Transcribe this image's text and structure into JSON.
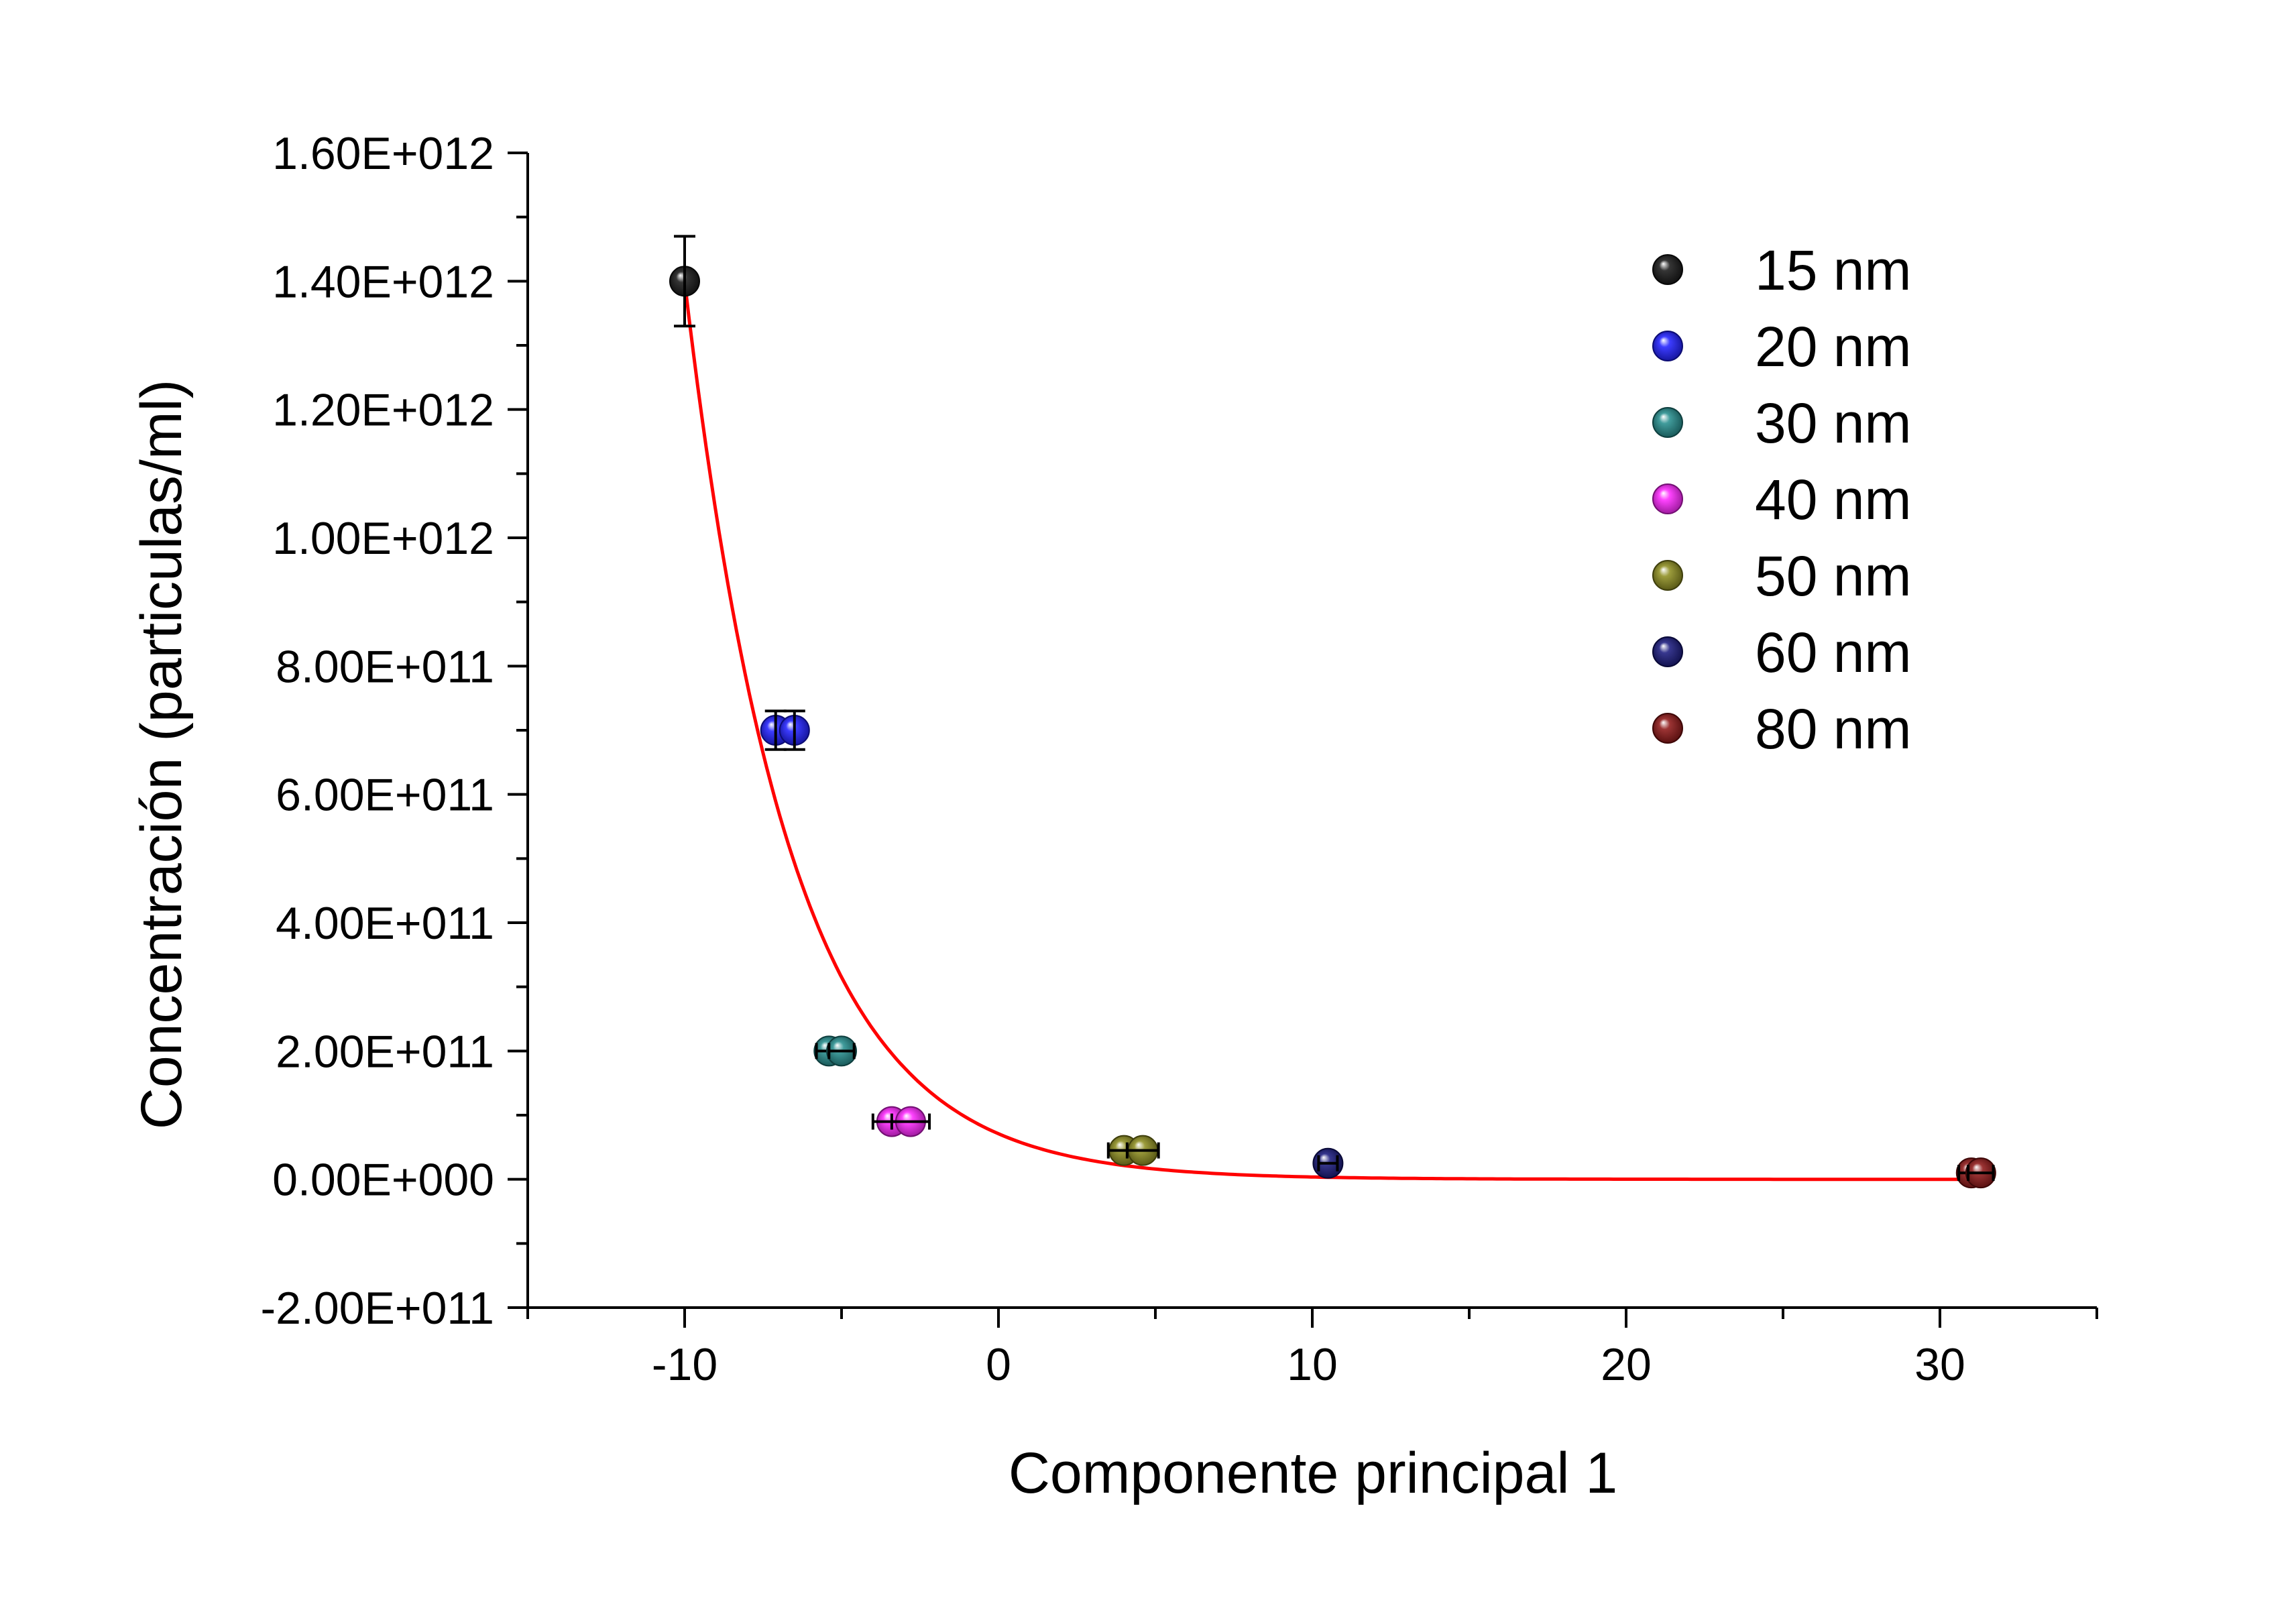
{
  "chart_data": {
    "type": "scatter",
    "xlabel": "Componente principal 1",
    "ylabel": "Concentración (particulas/ml)",
    "xlim": [
      -15,
      35
    ],
    "ylim": [
      -200000000000,
      1600000000000
    ],
    "x_ticks": [
      -10,
      0,
      10,
      20,
      30
    ],
    "x_tick_labels": [
      "-10",
      "0",
      "10",
      "20",
      "30"
    ],
    "y_ticks": [
      -200000000000,
      0,
      200000000000,
      400000000000,
      600000000000,
      800000000000,
      1000000000000,
      1200000000000,
      1400000000000,
      1600000000000
    ],
    "y_tick_labels": [
      "-2.00E+011",
      "0.00E+000",
      "2.00E+011",
      "4.00E+011",
      "6.00E+011",
      "8.00E+011",
      "1.00E+012",
      "1.20E+012",
      "1.40E+012",
      "1.60E+012"
    ],
    "grid": false,
    "legend_position": "top-right",
    "series": [
      {
        "name": "15 nm",
        "color": "#111111",
        "points": [
          {
            "x": -10.0,
            "y": 1400000000000,
            "yerr": 70000000000
          }
        ]
      },
      {
        "name": "20 nm",
        "color": "#1a1aff",
        "points": [
          {
            "x": -7.1,
            "y": 700000000000,
            "yerr": 30000000000
          },
          {
            "x": -6.5,
            "y": 700000000000,
            "yerr": 30000000000
          }
        ]
      },
      {
        "name": "30 nm",
        "color": "#1f8a8a",
        "points": [
          {
            "x": -5.4,
            "y": 200000000000,
            "xerr": 0.4
          },
          {
            "x": -5.0,
            "y": 200000000000,
            "xerr": 0.4
          }
        ]
      },
      {
        "name": "40 nm",
        "color": "#ff22ff",
        "points": [
          {
            "x": -3.4,
            "y": 90000000000,
            "xerr": 0.6
          },
          {
            "x": -2.8,
            "y": 90000000000,
            "xerr": 0.6
          }
        ]
      },
      {
        "name": "50 nm",
        "color": "#8a8a1a",
        "points": [
          {
            "x": 4.0,
            "y": 45000000000,
            "xerr": 0.5
          },
          {
            "x": 4.6,
            "y": 45000000000,
            "xerr": 0.5
          }
        ]
      },
      {
        "name": "60 nm",
        "color": "#14147a",
        "points": [
          {
            "x": 10.5,
            "y": 25000000000,
            "xerr": 0.3
          }
        ]
      },
      {
        "name": "80 nm",
        "color": "#8a1010",
        "points": [
          {
            "x": 31.0,
            "y": 10000000000,
            "xerr": 0.4
          },
          {
            "x": 31.3,
            "y": 10000000000,
            "xerr": 0.4
          }
        ]
      }
    ],
    "fit": {
      "type": "exponential_decay",
      "color": "#ff0000",
      "x_range": [
        -10,
        31.3
      ],
      "points": [
        {
          "x": -10,
          "y": 1400000000000
        },
        {
          "x": -9,
          "y": 1039000000000
        },
        {
          "x": -8,
          "y": 771000000000
        },
        {
          "x": -7,
          "y": 572000000000
        },
        {
          "x": -6,
          "y": 425000000000
        },
        {
          "x": -5,
          "y": 315000000000
        },
        {
          "x": -4,
          "y": 234000000000
        },
        {
          "x": -3,
          "y": 174000000000
        },
        {
          "x": -2,
          "y": 129000000000
        },
        {
          "x": -1,
          "y": 95700000000
        },
        {
          "x": 0,
          "y": 71000000000
        },
        {
          "x": 2,
          "y": 39100000000
        },
        {
          "x": 4,
          "y": 21500000000
        },
        {
          "x": 6,
          "y": 11900000000
        },
        {
          "x": 8,
          "y": 6500000000
        },
        {
          "x": 10,
          "y": 3600000000
        },
        {
          "x": 13,
          "y": 1500000000
        },
        {
          "x": 16,
          "y": 600000000
        },
        {
          "x": 20,
          "y": 200000000
        },
        {
          "x": 25,
          "y": 0
        },
        {
          "x": 31.3,
          "y": 0
        }
      ]
    }
  }
}
